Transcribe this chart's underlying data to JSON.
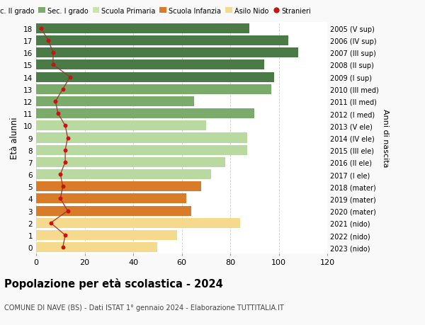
{
  "ages": [
    18,
    17,
    16,
    15,
    14,
    13,
    12,
    11,
    10,
    9,
    8,
    7,
    6,
    5,
    4,
    3,
    2,
    1,
    0
  ],
  "bar_values": [
    88,
    104,
    108,
    94,
    98,
    97,
    65,
    90,
    70,
    87,
    87,
    78,
    72,
    68,
    62,
    64,
    84,
    58,
    50
  ],
  "bar_colors": [
    "#4a7a45",
    "#4a7a45",
    "#4a7a45",
    "#4a7a45",
    "#4a7a45",
    "#7aab6a",
    "#7aab6a",
    "#7aab6a",
    "#b8d9a0",
    "#b8d9a0",
    "#b8d9a0",
    "#b8d9a0",
    "#b8d9a0",
    "#d97c2a",
    "#d97c2a",
    "#d97c2a",
    "#f5d98c",
    "#f5d98c",
    "#f5d98c"
  ],
  "stranieri_values": [
    2,
    5,
    7,
    7,
    14,
    11,
    8,
    9,
    12,
    13,
    12,
    12,
    10,
    11,
    10,
    13,
    6,
    12,
    11
  ],
  "right_labels": [
    "2005 (V sup)",
    "2006 (IV sup)",
    "2007 (III sup)",
    "2008 (II sup)",
    "2009 (I sup)",
    "2010 (III med)",
    "2011 (II med)",
    "2012 (I med)",
    "2013 (V ele)",
    "2014 (IV ele)",
    "2015 (III ele)",
    "2016 (II ele)",
    "2017 (I ele)",
    "2018 (mater)",
    "2019 (mater)",
    "2020 (mater)",
    "2021 (nido)",
    "2022 (nido)",
    "2023 (nido)"
  ],
  "legend_labels": [
    "Sec. II grado",
    "Sec. I grado",
    "Scuola Primaria",
    "Scuola Infanzia",
    "Asilo Nido",
    "Stranieri"
  ],
  "legend_colors": [
    "#4a7a45",
    "#7aab6a",
    "#c8e6a8",
    "#d97c2a",
    "#f5d98c",
    "#cc1111"
  ],
  "ylabel": "Età alunni",
  "right_ylabel": "Anni di nascita",
  "title": "Popolazione per età scolastica - 2024",
  "subtitle": "COMUNE DI NAVE (BS) - Dati ISTAT 1° gennaio 2024 - Elaborazione TUTTITALIA.IT",
  "xlim": [
    0,
    120
  ],
  "background_color": "#f9f9f9",
  "bar_background": "#ffffff",
  "stranieri_color": "#cc1111",
  "stranieri_line_color": "#993333"
}
